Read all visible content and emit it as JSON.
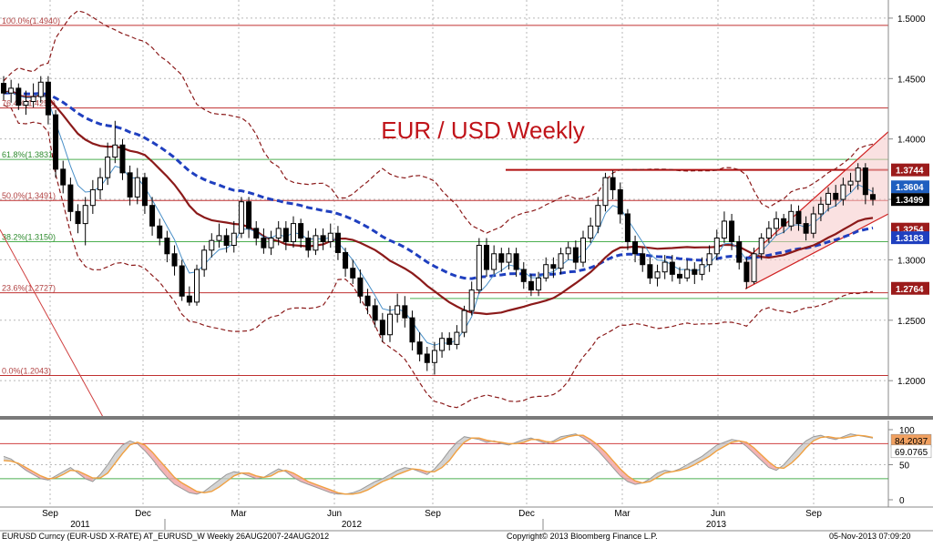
{
  "chart_data": {
    "type": "candlestick",
    "title": "EUR / USD Weekly",
    "colors": {
      "title": "#c0141a",
      "bull": "#ffffff",
      "bear": "#000000",
      "ma_dark": "#8b1a1a",
      "ma_blue": "#1f3fbf",
      "ma_thin": "#4a90c8",
      "band": "#8b1a1a",
      "fib_line": "#c03030",
      "fib_green": "#4caf50",
      "channel_fill": "#f6c9c9",
      "channel_line": "#d02020",
      "resistance": "#b01010"
    },
    "price_axis": {
      "ylim": [
        1.17,
        1.515
      ],
      "ticks": [
        "1.5000",
        "1.4500",
        "1.4000",
        "1.3500",
        "1.3000",
        "1.2500",
        "1.2000"
      ],
      "tick_values": [
        1.5,
        1.45,
        1.4,
        1.35,
        1.3,
        1.25,
        1.2
      ]
    },
    "time_axis": {
      "months": [
        "Sep",
        "Dec",
        "Mar",
        "Jun",
        "Sep",
        "Dec",
        "Mar",
        "Jun",
        "Sep"
      ],
      "years": [
        "2011",
        "2012",
        "2013"
      ]
    },
    "fib_levels": [
      {
        "label": "100.0%(1.4940)",
        "value": 1.494
      },
      {
        "label": "76.4%(1.4256)",
        "value": 1.4256
      },
      {
        "label": "61.8%(1.3831)",
        "value": 1.3831
      },
      {
        "label": "50.0%(1.3491)",
        "value": 1.3491
      },
      {
        "label": "38.2%(1.3150)",
        "value": 1.315
      },
      {
        "label": "23.6%(1.2727)",
        "value": 1.2727
      },
      {
        "label": "0.0%(1.2043)",
        "value": 1.2043
      }
    ],
    "price_tags": [
      {
        "label": "1.3744",
        "value": 1.3744,
        "color": "#9b1b1b"
      },
      {
        "label": "1.3604",
        "value": 1.3604,
        "color": "#1f5fbf"
      },
      {
        "label": "1.3499",
        "value": 1.3499,
        "color": "#000000"
      },
      {
        "label": "1.3254",
        "value": 1.3254,
        "color": "#9b1b1b"
      },
      {
        "label": "1.3183",
        "value": 1.3183,
        "color": "#1f3fbf"
      },
      {
        "label": "1.2764",
        "value": 1.2764,
        "color": "#9b1b1b"
      }
    ],
    "resistance_level": 1.3744,
    "candles": [
      [
        1.446,
        1.438,
        1.452,
        1.432
      ],
      [
        1.438,
        1.442,
        1.449,
        1.43
      ],
      [
        1.442,
        1.428,
        1.446,
        1.424
      ],
      [
        1.428,
        1.431,
        1.44,
        1.42
      ],
      [
        1.431,
        1.435,
        1.446,
        1.426
      ],
      [
        1.435,
        1.447,
        1.452,
        1.43
      ],
      [
        1.447,
        1.42,
        1.452,
        1.412
      ],
      [
        1.42,
        1.375,
        1.424,
        1.368
      ],
      [
        1.375,
        1.362,
        1.382,
        1.355
      ],
      [
        1.362,
        1.34,
        1.368,
        1.332
      ],
      [
        1.34,
        1.33,
        1.346,
        1.322
      ],
      [
        1.33,
        1.345,
        1.352,
        1.312
      ],
      [
        1.345,
        1.358,
        1.366,
        1.338
      ],
      [
        1.358,
        1.368,
        1.376,
        1.35
      ],
      [
        1.368,
        1.385,
        1.397,
        1.362
      ],
      [
        1.385,
        1.395,
        1.415,
        1.38
      ],
      [
        1.395,
        1.372,
        1.4,
        1.366
      ],
      [
        1.372,
        1.352,
        1.378,
        1.345
      ],
      [
        1.352,
        1.368,
        1.376,
        1.346
      ],
      [
        1.368,
        1.345,
        1.372,
        1.338
      ],
      [
        1.345,
        1.328,
        1.352,
        1.32
      ],
      [
        1.328,
        1.318,
        1.334,
        1.312
      ],
      [
        1.318,
        1.305,
        1.324,
        1.298
      ],
      [
        1.305,
        1.295,
        1.312,
        1.287
      ],
      [
        1.295,
        1.27,
        1.3,
        1.266
      ],
      [
        1.27,
        1.265,
        1.278,
        1.262
      ],
      [
        1.265,
        1.292,
        1.296,
        1.262
      ],
      [
        1.292,
        1.308,
        1.312,
        1.286
      ],
      [
        1.308,
        1.316,
        1.322,
        1.302
      ],
      [
        1.316,
        1.32,
        1.33,
        1.31
      ],
      [
        1.32,
        1.312,
        1.326,
        1.306
      ],
      [
        1.312,
        1.322,
        1.332,
        1.306
      ],
      [
        1.322,
        1.348,
        1.352,
        1.318
      ],
      [
        1.348,
        1.326,
        1.352,
        1.318
      ],
      [
        1.326,
        1.318,
        1.332,
        1.312
      ],
      [
        1.318,
        1.31,
        1.326,
        1.305
      ],
      [
        1.31,
        1.318,
        1.324,
        1.304
      ],
      [
        1.318,
        1.326,
        1.332,
        1.312
      ],
      [
        1.326,
        1.315,
        1.332,
        1.308
      ],
      [
        1.315,
        1.33,
        1.336,
        1.31
      ],
      [
        1.33,
        1.318,
        1.334,
        1.31
      ],
      [
        1.318,
        1.308,
        1.324,
        1.302
      ],
      [
        1.308,
        1.32,
        1.326,
        1.304
      ],
      [
        1.32,
        1.315,
        1.326,
        1.308
      ],
      [
        1.315,
        1.322,
        1.33,
        1.31
      ],
      [
        1.322,
        1.306,
        1.328,
        1.3
      ],
      [
        1.306,
        1.293,
        1.31,
        1.286
      ],
      [
        1.293,
        1.285,
        1.3,
        1.28
      ],
      [
        1.285,
        1.27,
        1.292,
        1.264
      ],
      [
        1.27,
        1.262,
        1.276,
        1.255
      ],
      [
        1.262,
        1.25,
        1.268,
        1.244
      ],
      [
        1.25,
        1.238,
        1.256,
        1.232
      ],
      [
        1.238,
        1.255,
        1.262,
        1.232
      ],
      [
        1.255,
        1.262,
        1.272,
        1.248
      ],
      [
        1.262,
        1.252,
        1.27,
        1.244
      ],
      [
        1.252,
        1.232,
        1.258,
        1.225
      ],
      [
        1.232,
        1.222,
        1.24,
        1.216
      ],
      [
        1.222,
        1.215,
        1.228,
        1.208
      ],
      [
        1.215,
        1.225,
        1.232,
        1.205
      ],
      [
        1.225,
        1.235,
        1.24,
        1.219
      ],
      [
        1.235,
        1.23,
        1.24,
        1.225
      ],
      [
        1.23,
        1.24,
        1.246,
        1.226
      ],
      [
        1.24,
        1.258,
        1.262,
        1.236
      ],
      [
        1.258,
        1.275,
        1.282,
        1.254
      ],
      [
        1.275,
        1.312,
        1.318,
        1.272
      ],
      [
        1.312,
        1.292,
        1.318,
        1.286
      ],
      [
        1.292,
        1.305,
        1.312,
        1.288
      ],
      [
        1.305,
        1.298,
        1.31,
        1.29
      ],
      [
        1.298,
        1.305,
        1.31,
        1.292
      ],
      [
        1.305,
        1.292,
        1.31,
        1.286
      ],
      [
        1.292,
        1.282,
        1.298,
        1.276
      ],
      [
        1.282,
        1.275,
        1.288,
        1.27
      ],
      [
        1.275,
        1.285,
        1.29,
        1.27
      ],
      [
        1.285,
        1.296,
        1.302,
        1.282
      ],
      [
        1.296,
        1.293,
        1.302,
        1.285
      ],
      [
        1.293,
        1.305,
        1.31,
        1.288
      ],
      [
        1.305,
        1.31,
        1.315,
        1.3
      ],
      [
        1.31,
        1.298,
        1.316,
        1.292
      ],
      [
        1.298,
        1.318,
        1.324,
        1.294
      ],
      [
        1.318,
        1.328,
        1.335,
        1.314
      ],
      [
        1.328,
        1.345,
        1.352,
        1.322
      ],
      [
        1.345,
        1.368,
        1.372,
        1.34
      ],
      [
        1.368,
        1.358,
        1.374,
        1.35
      ],
      [
        1.358,
        1.338,
        1.364,
        1.33
      ],
      [
        1.338,
        1.315,
        1.342,
        1.308
      ],
      [
        1.315,
        1.305,
        1.32,
        1.298
      ],
      [
        1.305,
        1.296,
        1.31,
        1.29
      ],
      [
        1.296,
        1.285,
        1.302,
        1.28
      ],
      [
        1.285,
        1.29,
        1.296,
        1.278
      ],
      [
        1.29,
        1.298,
        1.304,
        1.284
      ],
      [
        1.298,
        1.288,
        1.304,
        1.282
      ],
      [
        1.288,
        1.285,
        1.294,
        1.28
      ],
      [
        1.285,
        1.292,
        1.3,
        1.282
      ],
      [
        1.292,
        1.288,
        1.298,
        1.28
      ],
      [
        1.288,
        1.296,
        1.302,
        1.283
      ],
      [
        1.296,
        1.305,
        1.312,
        1.29
      ],
      [
        1.305,
        1.318,
        1.325,
        1.3
      ],
      [
        1.318,
        1.332,
        1.34,
        1.314
      ],
      [
        1.332,
        1.315,
        1.338,
        1.308
      ],
      [
        1.315,
        1.298,
        1.32,
        1.292
      ],
      [
        1.298,
        1.282,
        1.302,
        1.276
      ],
      [
        1.282,
        1.305,
        1.31,
        1.28
      ],
      [
        1.305,
        1.318,
        1.322,
        1.3
      ],
      [
        1.318,
        1.326,
        1.332,
        1.314
      ],
      [
        1.326,
        1.334,
        1.34,
        1.32
      ],
      [
        1.334,
        1.328,
        1.338,
        1.322
      ],
      [
        1.328,
        1.34,
        1.346,
        1.324
      ],
      [
        1.34,
        1.33,
        1.345,
        1.324
      ],
      [
        1.33,
        1.322,
        1.336,
        1.316
      ],
      [
        1.322,
        1.338,
        1.344,
        1.318
      ],
      [
        1.338,
        1.346,
        1.352,
        1.332
      ],
      [
        1.346,
        1.355,
        1.36,
        1.34
      ],
      [
        1.355,
        1.35,
        1.362,
        1.344
      ],
      [
        1.35,
        1.362,
        1.368,
        1.345
      ],
      [
        1.362,
        1.365,
        1.372,
        1.356
      ],
      [
        1.365,
        1.376,
        1.38,
        1.358
      ],
      [
        1.376,
        1.354,
        1.38,
        1.346
      ],
      [
        1.354,
        1.35,
        1.36,
        1.345
      ]
    ],
    "momentum_panel": {
      "ylim": [
        0,
        100
      ],
      "ticks": [
        "100",
        "50",
        "0"
      ],
      "tick_values": [
        100,
        50,
        0
      ],
      "levels": [
        80,
        30
      ],
      "tags": [
        {
          "label": "84.2037",
          "value": 84.2037,
          "color": "#f0a060"
        },
        {
          "label": "69.0765",
          "value": 69.0765,
          "color": "#ffffff"
        }
      ],
      "k_values": [
        62,
        58,
        50,
        42,
        36,
        30,
        28,
        34,
        40,
        46,
        38,
        30,
        26,
        36,
        50,
        66,
        78,
        84,
        80,
        70,
        58,
        44,
        32,
        22,
        16,
        10,
        8,
        12,
        20,
        28,
        36,
        40,
        38,
        34,
        30,
        32,
        38,
        44,
        40,
        32,
        26,
        22,
        18,
        14,
        10,
        8,
        8,
        10,
        14,
        20,
        26,
        30,
        36,
        42,
        46,
        44,
        40,
        36,
        44,
        56,
        70,
        82,
        90,
        88,
        86,
        82,
        84,
        80,
        78,
        82,
        86,
        88,
        84,
        80,
        84,
        90,
        92,
        94,
        88,
        80,
        70,
        58,
        46,
        34,
        26,
        22,
        24,
        30,
        38,
        42,
        40,
        44,
        50,
        56,
        62,
        70,
        78,
        82,
        86,
        84,
        76,
        66,
        56,
        46,
        42,
        50,
        62,
        74,
        84,
        90,
        92,
        88,
        86,
        90,
        94,
        92,
        90,
        88,
        86,
        84
      ],
      "d_values": [
        56,
        55,
        52,
        46,
        40,
        34,
        30,
        31,
        36,
        42,
        41,
        36,
        31,
        31,
        38,
        52,
        66,
        78,
        82,
        78,
        68,
        56,
        44,
        32,
        24,
        18,
        12,
        10,
        12,
        18,
        26,
        34,
        38,
        38,
        34,
        32,
        34,
        40,
        42,
        38,
        32,
        26,
        22,
        18,
        14,
        10,
        8,
        8,
        10,
        14,
        20,
        26,
        30,
        36,
        40,
        44,
        43,
        40,
        40,
        46,
        56,
        70,
        82,
        88,
        88,
        85,
        83,
        82,
        80,
        80,
        82,
        86,
        86,
        83,
        82,
        86,
        90,
        92,
        92,
        86,
        78,
        68,
        56,
        44,
        34,
        27,
        24,
        26,
        32,
        38,
        40,
        42,
        45,
        50,
        56,
        62,
        70,
        76,
        82,
        84,
        82,
        74,
        64,
        54,
        46,
        45,
        52,
        62,
        74,
        84,
        89,
        90,
        88,
        88,
        90,
        92,
        91,
        89,
        87,
        86
      ]
    }
  },
  "footer": {
    "left": "EURUSD Curncy (EUR-USD X-RATE) AT_EURUSD_W  Weekly 26AUG2007-24AUG2012",
    "center": "Copyright© 2013 Bloomberg Finance L.P.",
    "right": "05-Nov-2013 07:09:20"
  }
}
